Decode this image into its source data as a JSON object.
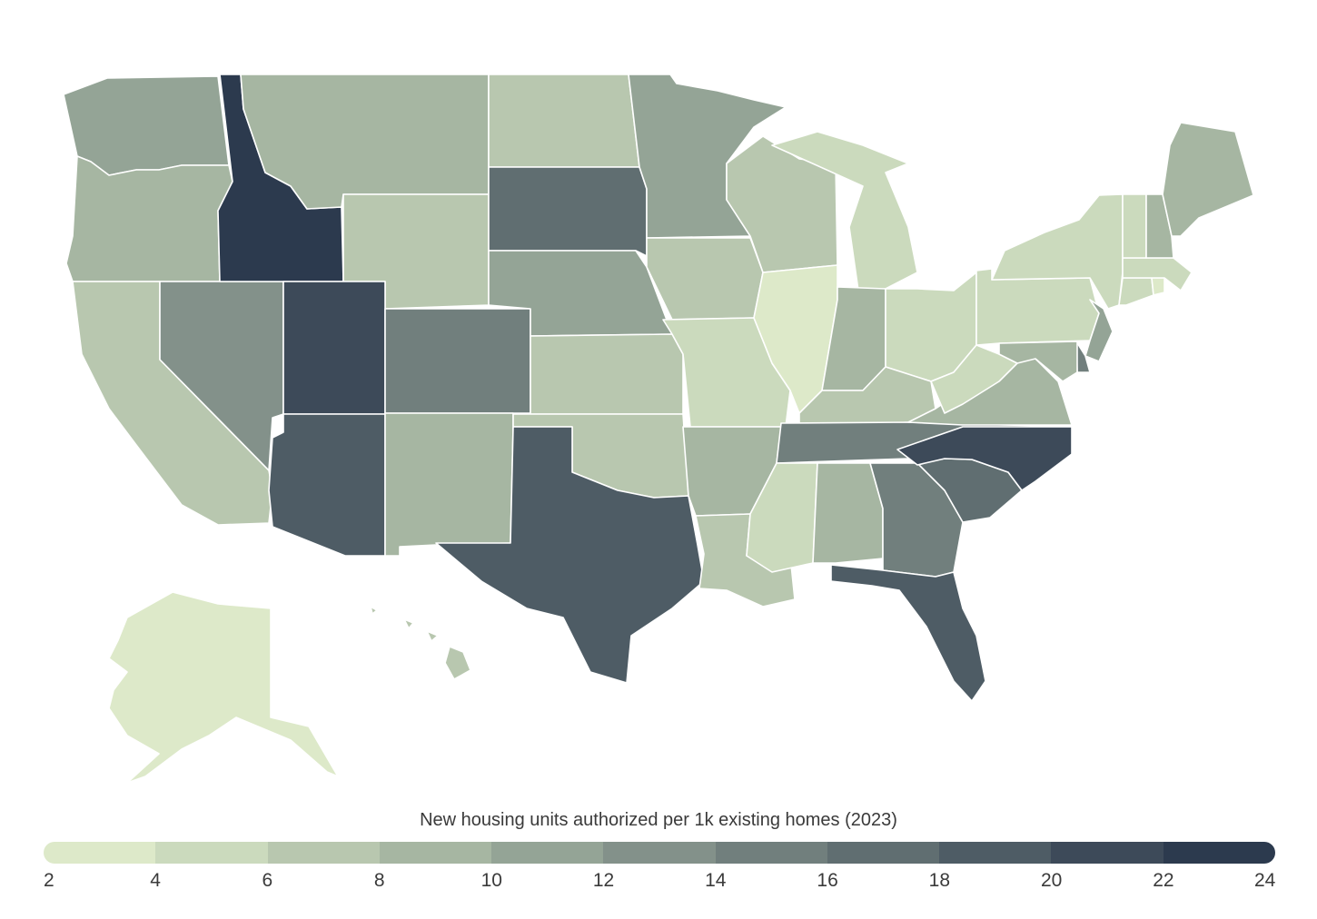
{
  "legend": {
    "title": "New housing units authorized per 1k existing homes (2023)",
    "ticks": [
      "2",
      "4",
      "6",
      "8",
      "10",
      "12",
      "14",
      "16",
      "18",
      "20",
      "22",
      "24"
    ],
    "colors": [
      "#dde9c9",
      "#cbdabd",
      "#b8c7af",
      "#a6b6a2",
      "#94a496",
      "#83918a",
      "#717f7d",
      "#606e71",
      "#4e5c65",
      "#3d4a59",
      "#2c3a4e"
    ]
  },
  "map_data": {
    "scale_min": 2,
    "scale_max": 24,
    "states": [
      {
        "name": "Washington",
        "bin": 4
      },
      {
        "name": "Oregon",
        "bin": 3
      },
      {
        "name": "California",
        "bin": 2
      },
      {
        "name": "Nevada",
        "bin": 5
      },
      {
        "name": "Idaho",
        "bin": 10
      },
      {
        "name": "Montana",
        "bin": 3
      },
      {
        "name": "Wyoming",
        "bin": 2
      },
      {
        "name": "Utah",
        "bin": 9
      },
      {
        "name": "Arizona",
        "bin": 8
      },
      {
        "name": "Colorado",
        "bin": 6
      },
      {
        "name": "New Mexico",
        "bin": 3
      },
      {
        "name": "North Dakota",
        "bin": 2
      },
      {
        "name": "South Dakota",
        "bin": 7
      },
      {
        "name": "Nebraska",
        "bin": 4
      },
      {
        "name": "Kansas",
        "bin": 2
      },
      {
        "name": "Oklahoma",
        "bin": 2
      },
      {
        "name": "Texas",
        "bin": 8
      },
      {
        "name": "Minnesota",
        "bin": 4
      },
      {
        "name": "Iowa",
        "bin": 2
      },
      {
        "name": "Missouri",
        "bin": 1
      },
      {
        "name": "Arkansas",
        "bin": 3
      },
      {
        "name": "Louisiana",
        "bin": 2
      },
      {
        "name": "Wisconsin",
        "bin": 2
      },
      {
        "name": "Illinois",
        "bin": 0
      },
      {
        "name": "Michigan",
        "bin": 1
      },
      {
        "name": "Indiana",
        "bin": 3
      },
      {
        "name": "Ohio",
        "bin": 1
      },
      {
        "name": "Kentucky",
        "bin": 2
      },
      {
        "name": "Tennessee",
        "bin": 6
      },
      {
        "name": "Mississippi",
        "bin": 1
      },
      {
        "name": "Alabama",
        "bin": 3
      },
      {
        "name": "Georgia",
        "bin": 6
      },
      {
        "name": "Florida",
        "bin": 8
      },
      {
        "name": "South Carolina",
        "bin": 7
      },
      {
        "name": "North Carolina",
        "bin": 9
      },
      {
        "name": "Virginia",
        "bin": 3
      },
      {
        "name": "West Virginia",
        "bin": 1
      },
      {
        "name": "Pennsylvania",
        "bin": 1
      },
      {
        "name": "New York",
        "bin": 1
      },
      {
        "name": "New Jersey",
        "bin": 4
      },
      {
        "name": "Delaware",
        "bin": 6
      },
      {
        "name": "Maryland",
        "bin": 3
      },
      {
        "name": "Connecticut",
        "bin": 1
      },
      {
        "name": "Rhode Island",
        "bin": 0
      },
      {
        "name": "Massachusetts",
        "bin": 1
      },
      {
        "name": "Vermont",
        "bin": 1
      },
      {
        "name": "New Hampshire",
        "bin": 3
      },
      {
        "name": "Maine",
        "bin": 3
      },
      {
        "name": "Alaska",
        "bin": 0
      },
      {
        "name": "Hawaii",
        "bin": 2
      }
    ]
  }
}
